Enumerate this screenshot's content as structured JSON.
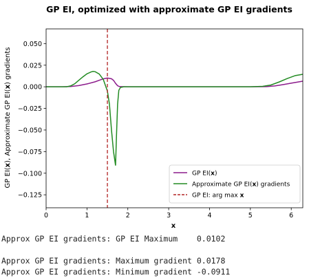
{
  "chart_data": {
    "type": "line",
    "title": "GP EI, optimized with approximate GP EI gradients",
    "xlabel": "x",
    "ylabel_parts": [
      "GP EI(",
      "x",
      "), Approximate GP EI(",
      "x",
      ") gradients"
    ],
    "xlim": [
      0,
      6.283
    ],
    "ylim": [
      -0.14,
      0.067
    ],
    "x_ticks": [
      0,
      1,
      2,
      3,
      4,
      5,
      6
    ],
    "y_ticks": [
      0.05,
      0.025,
      0.0,
      -0.025,
      -0.05,
      -0.075,
      -0.1,
      -0.125
    ],
    "y_tick_labels": [
      "0.050",
      "0.025",
      "0.000",
      "−0.025",
      "−0.050",
      "−0.075",
      "−0.100",
      "−0.125"
    ],
    "grid": false,
    "legend_position": "lower right",
    "series": [
      {
        "name_parts": [
          "GP EI(",
          "x",
          ")"
        ],
        "color": "#8b1a8b",
        "style": "solid",
        "x": [
          0,
          0.4,
          0.6,
          0.8,
          1.0,
          1.2,
          1.3,
          1.4,
          1.5,
          1.6,
          1.65,
          1.7,
          1.75,
          1.8,
          2.0,
          3.0,
          4.0,
          5.0,
          5.4,
          5.6,
          5.8,
          6.0,
          6.283
        ],
        "y": [
          0,
          0,
          0.0003,
          0.0014,
          0.0033,
          0.0058,
          0.0075,
          0.0092,
          0.0102,
          0.0093,
          0.0075,
          0.004,
          0.0012,
          0.0002,
          0,
          0,
          0,
          0,
          0.0002,
          0.001,
          0.0025,
          0.0042,
          0.0065
        ]
      },
      {
        "name_parts": [
          "Approximate GP EI(",
          "x",
          ") gradients"
        ],
        "color": "#228b22",
        "style": "solid",
        "x": [
          0,
          0.5,
          0.6,
          0.7,
          0.8,
          0.9,
          1.0,
          1.1,
          1.15,
          1.2,
          1.3,
          1.4,
          1.5,
          1.55,
          1.6,
          1.65,
          1.7,
          1.72,
          1.75,
          1.78,
          1.82,
          1.9,
          2.0,
          3.0,
          4.0,
          5.0,
          5.3,
          5.5,
          5.7,
          5.9,
          6.1,
          6.283
        ],
        "y": [
          0,
          0,
          0.001,
          0.0035,
          0.0075,
          0.0115,
          0.015,
          0.0172,
          0.0178,
          0.0175,
          0.0148,
          0.0085,
          -0.005,
          -0.02,
          -0.05,
          -0.075,
          -0.0911,
          -0.06,
          -0.02,
          -0.004,
          -0.0008,
          0,
          0,
          0,
          0,
          0,
          0.0005,
          0.002,
          0.0055,
          0.0095,
          0.013,
          0.0145
        ]
      }
    ],
    "vline": {
      "x": 1.5,
      "color": "#b22222",
      "style": "dashed",
      "name_parts": [
        "GP EI: arg max ",
        "x"
      ]
    }
  },
  "output_lines": [
    "Approx GP EI gradients: GP EI Maximum    0.0102",
    "",
    "Approx GP EI gradients: Maximum gradient 0.0178",
    "Approx GP EI gradients: Minimum gradient -0.0911"
  ]
}
